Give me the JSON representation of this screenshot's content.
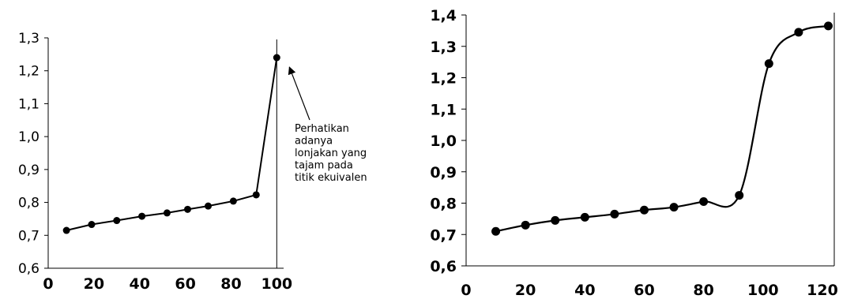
{
  "chart_data": [
    {
      "type": "line",
      "x": [
        8,
        19,
        30,
        41,
        52,
        61,
        70,
        81,
        91,
        100
      ],
      "y": [
        0.715,
        0.733,
        0.745,
        0.758,
        0.768,
        0.779,
        0.789,
        0.804,
        0.823,
        1.24
      ],
      "xlim": [
        0,
        103
      ],
      "ylim": [
        0.6,
        1.3
      ],
      "xticks": [
        0,
        20,
        40,
        60,
        80,
        100
      ],
      "xtick_labels": [
        "0",
        "20",
        "40",
        "60",
        "80",
        "100"
      ],
      "yticks": [
        0.6,
        0.7,
        0.8,
        0.9,
        1.0,
        1.1,
        1.2,
        1.3
      ],
      "ytick_labels": [
        "0,6",
        "0,7",
        "0,8",
        "0,9",
        "1,0",
        "1,1",
        "1,2",
        "1,3"
      ],
      "grid": false,
      "vertical_line_x": 100,
      "annotation": {
        "text_lines": [
          "Perhatikan",
          "adanya",
          "lonjakan yang",
          "tajam pada",
          "titik ekuivalen"
        ],
        "points_to": [
          100,
          1.24
        ]
      }
    },
    {
      "type": "line",
      "x": [
        10,
        20,
        30,
        40,
        50,
        60,
        70,
        80,
        92,
        102,
        112,
        122
      ],
      "y": [
        0.71,
        0.73,
        0.745,
        0.755,
        0.765,
        0.778,
        0.787,
        0.805,
        0.825,
        1.245,
        1.345,
        1.365
      ],
      "xlim": [
        0,
        124
      ],
      "ylim": [
        0.6,
        1.4
      ],
      "xticks": [
        0,
        20,
        40,
        60,
        80,
        100,
        120
      ],
      "xtick_labels": [
        "0",
        "20",
        "40",
        "60",
        "80",
        "100",
        "120"
      ],
      "yticks": [
        0.6,
        0.7,
        0.8,
        0.9,
        1.0,
        1.1,
        1.2,
        1.3,
        1.4
      ],
      "ytick_labels": [
        "0,6",
        "0,7",
        "0,8",
        "0,9",
        "1,0",
        "1,1",
        "1,2",
        "1,3",
        "1,4"
      ],
      "grid": false,
      "smooth": true
    }
  ]
}
